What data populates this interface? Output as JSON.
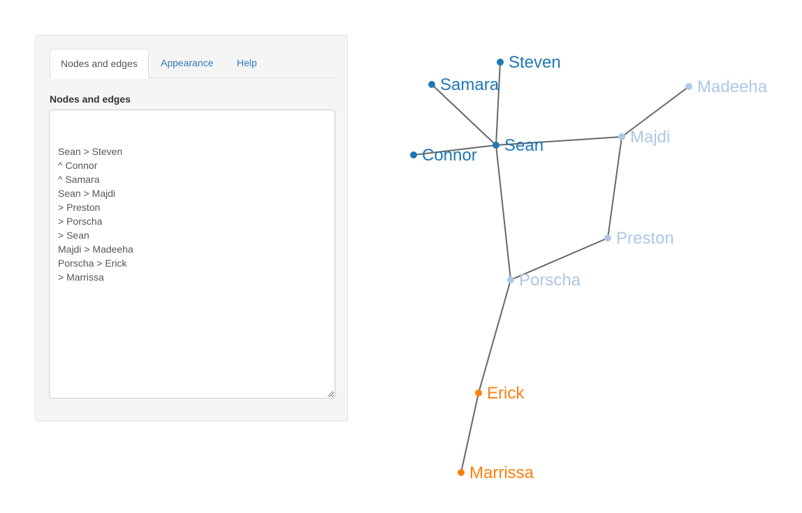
{
  "tabs": [
    {
      "label": "Nodes and edges",
      "active": true
    },
    {
      "label": "Appearance",
      "active": false
    },
    {
      "label": "Help",
      "active": false
    }
  ],
  "editor": {
    "label": "Nodes and edges",
    "lines": [
      "Sean > Steven",
      "^ Connor",
      "^ Samara",
      "Sean > Majdi",
      "> Preston",
      "> Porscha",
      "> Sean",
      "Majdi > Madeeha",
      "Porscha > Erick",
      "> Marrissa"
    ]
  },
  "colors": {
    "group_dark_blue": "#1f77b4",
    "group_light_blue": "#aec7e8",
    "group_orange": "#ff7f0e",
    "edge": "#666666"
  },
  "graph": {
    "nodes": [
      {
        "id": "Steven",
        "label": "Steven",
        "color": "#1f77b4"
      },
      {
        "id": "Samara",
        "label": "Samara",
        "color": "#1f77b4"
      },
      {
        "id": "Madeeha",
        "label": "Madeeha",
        "color": "#aec7e8"
      },
      {
        "id": "Majdi",
        "label": "Majdi",
        "color": "#aec7e8"
      },
      {
        "id": "Sean",
        "label": "Sean",
        "color": "#1f77b4"
      },
      {
        "id": "Connor",
        "label": "Connor",
        "color": "#1f77b4"
      },
      {
        "id": "Preston",
        "label": "Preston",
        "color": "#aec7e8"
      },
      {
        "id": "Porscha",
        "label": "Porscha",
        "color": "#aec7e8"
      },
      {
        "id": "Erick",
        "label": "Erick",
        "color": "#ff7f0e"
      },
      {
        "id": "Marrissa",
        "label": "Marrissa",
        "color": "#ff7f0e"
      }
    ],
    "edges": [
      [
        "Sean",
        "Steven"
      ],
      [
        "Sean",
        "Samara"
      ],
      [
        "Sean",
        "Connor"
      ],
      [
        "Sean",
        "Majdi"
      ],
      [
        "Majdi",
        "Madeeha"
      ],
      [
        "Majdi",
        "Preston"
      ],
      [
        "Preston",
        "Porscha"
      ],
      [
        "Porscha",
        "Sean"
      ],
      [
        "Porscha",
        "Erick"
      ],
      [
        "Erick",
        "Marrissa"
      ]
    ]
  }
}
